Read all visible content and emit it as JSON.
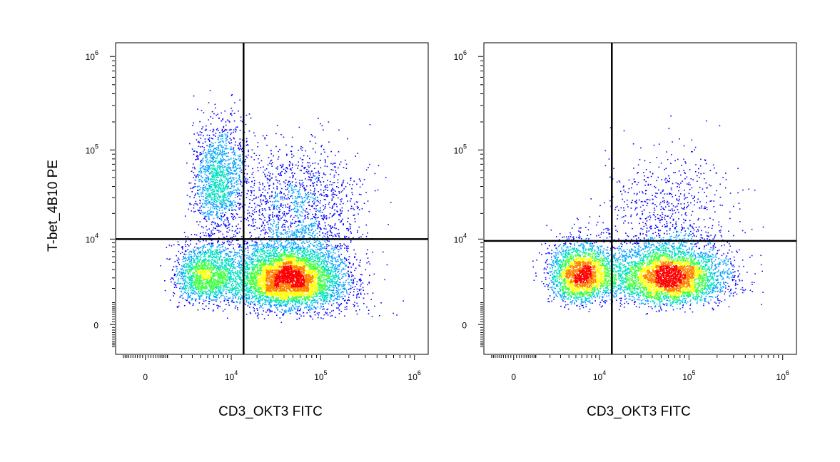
{
  "chart_data": [
    {
      "type": "scatter",
      "subtype": "flow-cytometry-density-dot-plot",
      "xlabel": "CD3_OKT3 FITC",
      "ylabel": "T-bet_4B10 PE",
      "x_scale": "biexponential",
      "y_scale": "biexponential",
      "x_ticks": [
        {
          "value": 0,
          "base": "0",
          "exp": ""
        },
        {
          "value": 10000,
          "base": "10",
          "exp": "4"
        },
        {
          "value": 100000,
          "base": "10",
          "exp": "5"
        },
        {
          "value": 1000000,
          "base": "10",
          "exp": "6"
        }
      ],
      "y_ticks": [
        {
          "value": 0,
          "base": "0",
          "exp": ""
        },
        {
          "value": 10000,
          "base": "10",
          "exp": "4"
        },
        {
          "value": 100000,
          "base": "10",
          "exp": "5"
        },
        {
          "value": 1000000,
          "base": "10",
          "exp": "6"
        }
      ],
      "quadrant_gate": {
        "x": 14000,
        "y": 10000
      },
      "color_scale": [
        "#0000ff",
        "#00a0ff",
        "#00e0c0",
        "#40ff40",
        "#ffff00",
        "#ff8000",
        "#ff0000"
      ],
      "populations": [
        {
          "x": 5000,
          "y": 3500,
          "count": 1900,
          "sx": 0.45,
          "sy": 0.42
        },
        {
          "x": 7000,
          "y": 50000,
          "count": 1500,
          "sx": 0.32,
          "sy": 0.55
        },
        {
          "x": 45000,
          "y": 3200,
          "count": 5200,
          "sx": 0.55,
          "sy": 0.45
        },
        {
          "x": 60000,
          "y": 25000,
          "count": 1300,
          "sx": 0.6,
          "sy": 0.6
        },
        {
          "x": 60000,
          "y": 1200,
          "count": 500,
          "sx": 0.7,
          "sy": 0.5
        }
      ]
    },
    {
      "type": "scatter",
      "subtype": "flow-cytometry-density-dot-plot",
      "xlabel": "CD3_OKT3 FITC",
      "ylabel": "",
      "x_scale": "biexponential",
      "y_scale": "biexponential",
      "x_ticks": [
        {
          "value": 0,
          "base": "0",
          "exp": ""
        },
        {
          "value": 10000,
          "base": "10",
          "exp": "4"
        },
        {
          "value": 100000,
          "base": "10",
          "exp": "5"
        },
        {
          "value": 1000000,
          "base": "10",
          "exp": "6"
        }
      ],
      "y_ticks": [
        {
          "value": 0,
          "base": "0",
          "exp": ""
        },
        {
          "value": 10000,
          "base": "10",
          "exp": "4"
        },
        {
          "value": 100000,
          "base": "10",
          "exp": "5"
        },
        {
          "value": 1000000,
          "base": "10",
          "exp": "6"
        }
      ],
      "quadrant_gate": {
        "x": 14000,
        "y": 9500
      },
      "color_scale": [
        "#0000ff",
        "#00a0ff",
        "#00e0c0",
        "#40ff40",
        "#ffff00",
        "#ff8000",
        "#ff0000"
      ],
      "populations": [
        {
          "x": 6000,
          "y": 3500,
          "count": 2600,
          "sx": 0.42,
          "sy": 0.42
        },
        {
          "x": 60000,
          "y": 3300,
          "count": 4300,
          "sx": 0.55,
          "sy": 0.45
        },
        {
          "x": 60000,
          "y": 22000,
          "count": 600,
          "sx": 0.6,
          "sy": 0.6
        }
      ]
    }
  ]
}
